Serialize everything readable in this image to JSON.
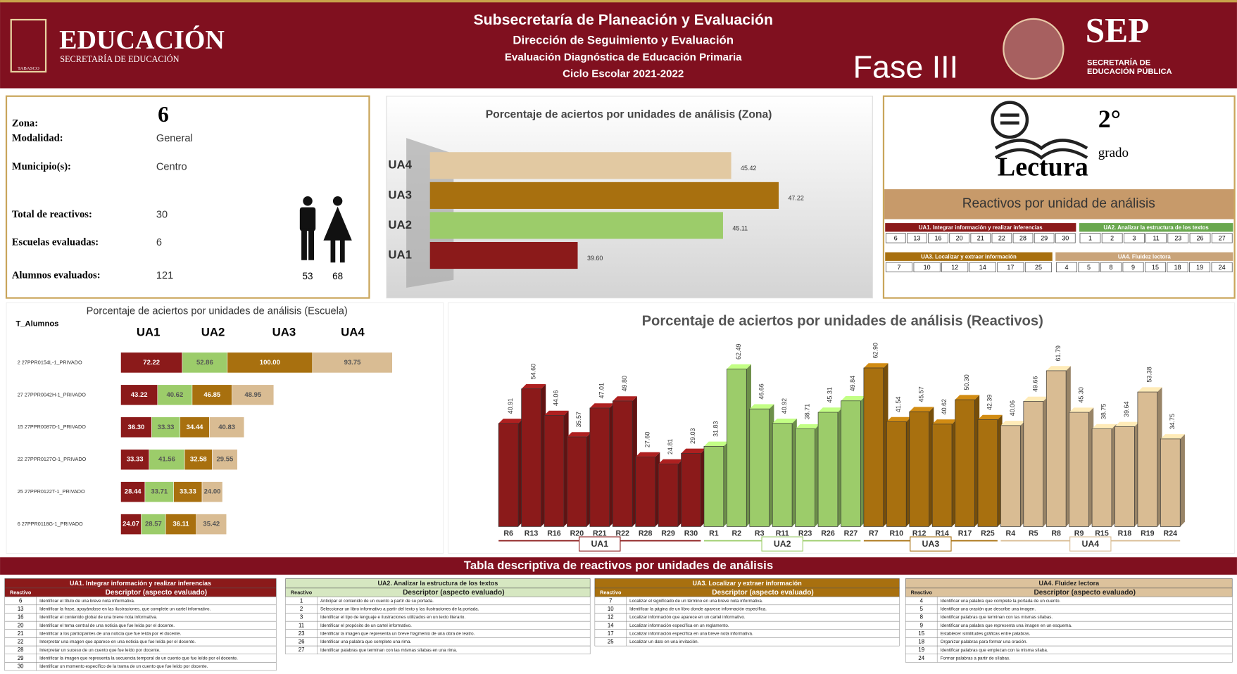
{
  "header": {
    "logo_title": "EDUCACIÓN",
    "logo_subtitle": "SECRETARÍA DE EDUCACIÓN",
    "logo_state": "TABASCO",
    "lines": [
      "Subsecretaría de Planeación y Evaluación",
      "Dirección de Seguimiento y Evaluación",
      "Evaluación Diagnóstica de Educación Primaria",
      "Ciclo Escolar 2021-2022"
    ],
    "phase": "Fase III",
    "sep_title": "SEP",
    "sep_lines": [
      "SECRETARÍA DE",
      "EDUCACIÓN PÚBLICA"
    ]
  },
  "info": {
    "rows": [
      {
        "label": "Zona:",
        "value": 6
      },
      {
        "label": "Modalidad:",
        "value": "General"
      },
      {
        "label": "Municipio(s):",
        "value": "Centro"
      },
      {
        "label": "Total de reactivos:",
        "value": 30
      },
      {
        "label": "Escuelas evaluadas:",
        "value": 6
      },
      {
        "label": "Alumnos evaluados:",
        "value": 121
      }
    ],
    "gender_counts": [
      53,
      68
    ]
  },
  "subject": {
    "name": "Lectura",
    "grade": "2°",
    "grade_word": "grado"
  },
  "units_panel": {
    "title": "Reactivos por unidad de análisis",
    "items": [
      [
        6,
        13,
        16,
        20,
        21,
        22,
        28,
        29,
        30
      ],
      [
        1,
        2,
        3,
        11,
        23,
        26,
        27
      ],
      [
        7,
        10,
        12,
        14,
        17,
        25
      ],
      [
        4,
        5,
        8,
        9,
        15,
        18,
        19,
        24
      ]
    ]
  },
  "chart_data": [
    {
      "type": "hbar",
      "title": "Porcentaje de aciertos por unidades de análisis (Zona)",
      "categories": [
        "UA4",
        "UA3",
        "UA2",
        "UA1"
      ],
      "values": [
        45.42,
        47.22,
        45.11,
        39.6
      ],
      "value_labels": [
        "45.42",
        "47.22",
        "45.11",
        "39.60"
      ],
      "colors": [
        "#e2c9a2",
        "#a8700f",
        "#9ccc6a",
        "#8b1a1a"
      ],
      "xlim": [
        34,
        50
      ]
    },
    {
      "type": "stacked_hbar",
      "title": "Porcentaje de aciertos por unidades de análisis (Escuela)",
      "category_header": "T_Alumnos",
      "categories": [
        "2 27PPR0154L-1_PRIVADO",
        "27 27PPR0042H-1_PRIVADO",
        "15 27PPR0087D-1_PRIVADO",
        "22 27PPR0127O-1_PRIVADO",
        "25 27PPR0122T-1_PRIVADO",
        "6 27PPR0118G-1_PRIVADO"
      ],
      "xlim": [
        0,
        350
      ],
      "series": [
        {
          "name": "UA1",
          "color": "#8b1a1a",
          "values": [
            72.22,
            43.22,
            36.3,
            33.33,
            28.44,
            24.07
          ],
          "value_labels": [
            "72.22",
            "43.22",
            "36.30",
            "33.33",
            "28.44",
            "24.07"
          ]
        },
        {
          "name": "UA2",
          "color": "#9ccc6a",
          "values": [
            52.86,
            40.62,
            33.33,
            41.56,
            33.71,
            28.57
          ],
          "value_labels": [
            "52.86",
            "40.62",
            "33.33",
            "41.56",
            "33.71",
            "28.57"
          ]
        },
        {
          "name": "UA3",
          "color": "#a8700f",
          "values": [
            100,
            46.85,
            34.44,
            32.58,
            33.33,
            36.11
          ],
          "value_labels": [
            "100.00",
            "46.85",
            "34.44",
            "32.58",
            "33.33",
            "36.11"
          ]
        },
        {
          "name": "UA4",
          "color": "#d9bc93",
          "values": [
            93.75,
            48.95,
            40.83,
            29.55,
            24,
            35.42
          ],
          "value_labels": [
            "93.75",
            "48.95",
            "40.83",
            "29.55",
            "24.00",
            "35.42"
          ]
        }
      ]
    },
    {
      "type": "bar",
      "title": "Porcentaje de aciertos por unidades de análisis (Reactivos)",
      "ylim": [
        0,
        70
      ],
      "series": [
        {
          "name": "UA1",
          "color": "#8b1a1a",
          "categories": [
            "R6",
            "R13",
            "R16",
            "R20",
            "R21",
            "R22",
            "R28",
            "R29",
            "R30"
          ],
          "values": [
            40.91,
            54.6,
            44.06,
            35.57,
            47.01,
            49.8,
            27.6,
            24.81,
            29.03
          ],
          "value_labels": [
            "40.91",
            "54.60",
            "44.06",
            "35.57",
            "47.01",
            "49.80",
            "27.60",
            "24.81",
            "29.03"
          ]
        },
        {
          "name": "UA2",
          "color": "#9ccc6a",
          "categories": [
            "R1",
            "R2",
            "R3",
            "R11",
            "R23",
            "R26",
            "R27"
          ],
          "values": [
            31.83,
            62.49,
            46.66,
            40.92,
            38.71,
            45.31,
            49.84
          ],
          "value_labels": [
            "31.83",
            "62.49",
            "46.66",
            "40.92",
            "38.71",
            "45.31",
            "49.84"
          ]
        },
        {
          "name": "UA3",
          "color": "#a8700f",
          "categories": [
            "R7",
            "R10",
            "R12",
            "R14",
            "R17",
            "R25"
          ],
          "values": [
            62.9,
            41.54,
            45.57,
            40.62,
            50.3,
            42.39
          ],
          "value_labels": [
            "62.90",
            "41.54",
            "45.57",
            "40.62",
            "50.30",
            "42.39"
          ]
        },
        {
          "name": "UA4",
          "color": "#d9bc93",
          "categories": [
            "R4",
            "R5",
            "R8",
            "R9",
            "R15",
            "R18",
            "R19",
            "R24"
          ],
          "values": [
            40.06,
            49.66,
            61.79,
            45.3,
            38.75,
            39.64,
            53.38,
            34.75
          ],
          "value_labels": [
            "40.06",
            "49.66",
            "61.79",
            "45.30",
            "38.75",
            "39.64",
            "53.38",
            "34.75"
          ]
        }
      ]
    }
  ],
  "table": {
    "title": "Tabla descriptiva de reactivos por unidades de análisis",
    "columns": [
      "Reactivo",
      "Descriptor (aspecto evaluado)"
    ],
    "groups": [
      {
        "name": "UA1. Integrar información y realizar inferencias",
        "rows": [
          [
            6,
            "Identificar el título de una breve nota informativa."
          ],
          [
            13,
            "Identificar la frase, apoyándose en las ilustraciones, que complete un cartel informativo."
          ],
          [
            16,
            "Identificar el contenido global de una breve nota informativa."
          ],
          [
            20,
            "Identificar el tema central de una noticia que fue leída por el docente."
          ],
          [
            21,
            "Identificar a los participantes de una noticia que fue leída por el docente."
          ],
          [
            22,
            "Interpretar una imagen que aparece en una noticia que fue leída por el docente."
          ],
          [
            28,
            "Interpretar un suceso de un cuento que fue leído por docente."
          ],
          [
            29,
            "Identificar la imagen que representa la secuencia temporal de un cuento que fue leído por el docente."
          ],
          [
            30,
            "Identificar un momento específico de la trama de un cuento que fue leído por docente."
          ]
        ]
      },
      {
        "name": "UA2. Analizar la estructura de los textos",
        "rows": [
          [
            1,
            "Anticipar el contenido de un cuento a partir de su portada."
          ],
          [
            2,
            "Seleccionar un libro informativo a partir del texto y las ilustraciones de la portada."
          ],
          [
            3,
            "Identificar el tipo de lenguaje e ilustraciones utilizados en un texto literario."
          ],
          [
            11,
            "Identificar el propósito de un cartel informativo."
          ],
          [
            23,
            "Identificar la imagen que representa un breve fragmento de una obra de teatro."
          ],
          [
            26,
            "Identificar una palabra que complete una rima."
          ],
          [
            27,
            "Identificar palabras que terminan con las mismas sílabas en una rima."
          ]
        ]
      },
      {
        "name": "UA3. Localizar y extraer información",
        "rows": [
          [
            7,
            "Localizar el significado de un término en una breve nota informativa."
          ],
          [
            10,
            "Identificar la página de un libro donde aparece información específica."
          ],
          [
            12,
            "Localizar información que aparece en un cartel informativo."
          ],
          [
            14,
            "Localizar información específica en un reglamento."
          ],
          [
            17,
            "Localizar información específica en una breve nota informativa."
          ],
          [
            25,
            "Localizar un dato en una invitación."
          ]
        ]
      },
      {
        "name": "UA4. Fluidez lectora",
        "rows": [
          [
            4,
            "Identificar una palabra que complete la portada de un cuento."
          ],
          [
            5,
            "Identificar una oración que describe una imagen."
          ],
          [
            8,
            "Identificar palabras que terminan con las mismas sílabas."
          ],
          [
            9,
            "Identificar una palabra que representa una imagen en un esquema."
          ],
          [
            15,
            "Establecer similitudes gráficas entre palabras."
          ],
          [
            18,
            "Organizar palabras para formar una oración."
          ],
          [
            19,
            "Identificar palabras que empiezan con la misma sílaba."
          ],
          [
            24,
            "Formar palabras a partir de sílabas."
          ]
        ]
      }
    ]
  }
}
